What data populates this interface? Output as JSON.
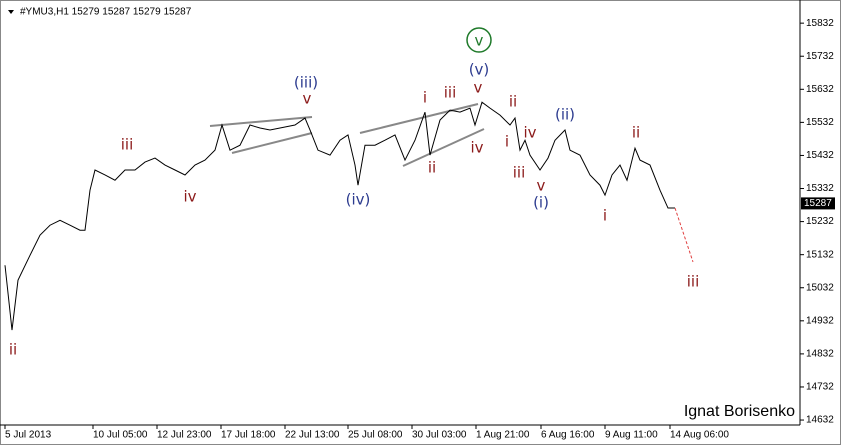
{
  "chart_data": {
    "type": "line",
    "title": "#YMU3,H1  15279 15287 15279 15287",
    "watermark": "Ignat Borisenko",
    "last_price": 15287,
    "xlim": [
      0,
      800
    ],
    "xticks": [
      {
        "value": 5,
        "label": "5 Jul 2013"
      },
      {
        "value": 93,
        "label": "10 Jul 05:00"
      },
      {
        "value": 157,
        "label": "12 Jul 23:00"
      },
      {
        "value": 221,
        "label": "17 Jul 18:00"
      },
      {
        "value": 285,
        "label": "22 Jul 13:00"
      },
      {
        "value": 348,
        "label": "25 Jul 08:00"
      },
      {
        "value": 412,
        "label": "30 Jul 03:00"
      },
      {
        "value": 476,
        "label": "1 Aug 21:00"
      },
      {
        "value": 541,
        "label": "6 Aug 16:00"
      },
      {
        "value": 605,
        "label": "9 Aug 11:00"
      },
      {
        "value": 670,
        "label": "14 Aug 06:00"
      }
    ],
    "ylim": [
      14617,
      15902
    ],
    "yticks": [
      15832,
      15732,
      15632,
      15532,
      15432,
      15332,
      15232,
      15132,
      15032,
      14932,
      14832,
      14732,
      14632
    ],
    "series": [
      {
        "name": "YMU3",
        "color": "#000000",
        "x": [
          5,
          12,
          18,
          30,
          40,
          50,
          60,
          70,
          80,
          85,
          90,
          95,
          105,
          115,
          125,
          135,
          145,
          155,
          165,
          175,
          185,
          195,
          205,
          215,
          222,
          230,
          240,
          250,
          260,
          270,
          280,
          295,
          305,
          310,
          318,
          330,
          340,
          348,
          355,
          358,
          365,
          375,
          385,
          395,
          405,
          415,
          425,
          430,
          440,
          450,
          460,
          470,
          475,
          482,
          490,
          500,
          510,
          515,
          520,
          525,
          530,
          540,
          548,
          555,
          565,
          570,
          580,
          590,
          600,
          605,
          612,
          620,
          627,
          635,
          640,
          650,
          660,
          668,
          675
        ],
        "values": [
          15100,
          14904,
          15055,
          15130,
          15191,
          15221,
          15236,
          15221,
          15206,
          15206,
          15327,
          15388,
          15373,
          15357,
          15388,
          15388,
          15412,
          15424,
          15403,
          15388,
          15373,
          15403,
          15418,
          15448,
          15524,
          15448,
          15463,
          15524,
          15515,
          15509,
          15515,
          15524,
          15545,
          15509,
          15448,
          15433,
          15478,
          15494,
          15403,
          15342,
          15463,
          15463,
          15478,
          15494,
          15418,
          15478,
          15563,
          15433,
          15539,
          15569,
          15563,
          15575,
          15524,
          15593,
          15575,
          15554,
          15524,
          15545,
          15448,
          15478,
          15433,
          15388,
          15424,
          15478,
          15509,
          15448,
          15433,
          15373,
          15342,
          15312,
          15373,
          15403,
          15357,
          15454,
          15418,
          15403,
          15327,
          15273,
          15273
        ]
      },
      {
        "name": "projection",
        "color": "#e04040",
        "x": [
          675,
          693
        ],
        "values": [
          15273,
          15110
        ]
      }
    ],
    "annotations": [
      {
        "text": "ii",
        "color": "#8b1a1a"
      },
      {
        "text": "iii",
        "color": "#8b1a1a"
      },
      {
        "text": "iv",
        "color": "#8b1a1a"
      },
      {
        "text": "(iii)",
        "color": "#2c3b8f"
      },
      {
        "text": "v",
        "color": "#8b1a1a"
      },
      {
        "text": "(iv)",
        "color": "#2c3b8f"
      },
      {
        "text": "i",
        "color": "#8b1a1a"
      },
      {
        "text": "ii",
        "color": "#8b1a1a"
      },
      {
        "text": "iii",
        "color": "#8b1a1a"
      },
      {
        "text": "iv",
        "color": "#8b1a1a"
      },
      {
        "text": "v",
        "color": "#8b1a1a"
      },
      {
        "text": "(v)",
        "color": "#2c3b8f"
      },
      {
        "text": "v",
        "color": "#1f7a2a"
      },
      {
        "text": "ii",
        "color": "#8b1a1a"
      },
      {
        "text": "i",
        "color": "#8b1a1a"
      },
      {
        "text": "iv",
        "color": "#8b1a1a"
      },
      {
        "text": "iii",
        "color": "#8b1a1a"
      },
      {
        "text": "v",
        "color": "#8b1a1a"
      },
      {
        "text": "(i)",
        "color": "#2c3b8f"
      },
      {
        "text": "(ii)",
        "color": "#2c3b8f"
      },
      {
        "text": "ii",
        "color": "#8b1a1a"
      },
      {
        "text": "i",
        "color": "#8b1a1a"
      },
      {
        "text": "iii",
        "color": "#8b1a1a"
      }
    ]
  }
}
